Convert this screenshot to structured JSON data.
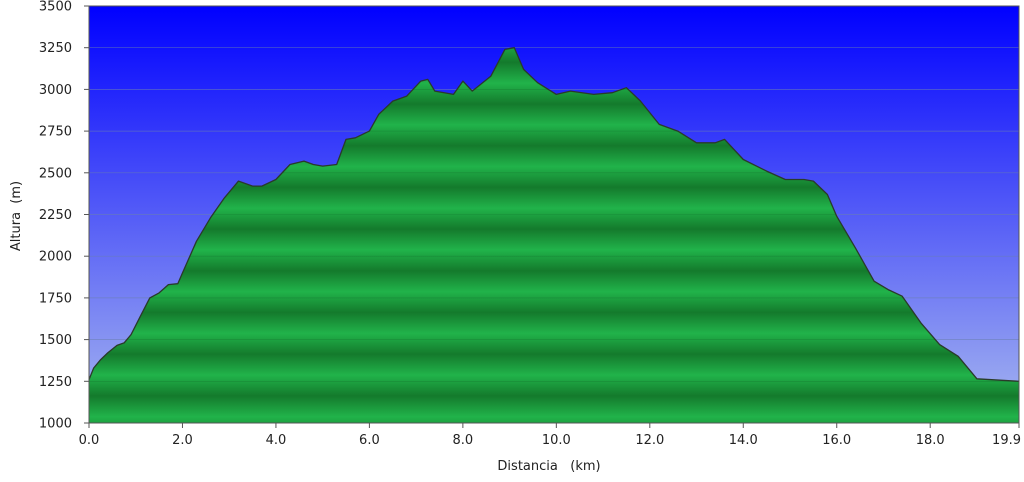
{
  "chart_data": {
    "type": "area",
    "xlabel": "Distancia   (km)",
    "ylabel": "Altura  (m)",
    "xlim": [
      0.0,
      19.9
    ],
    "ylim": [
      1000,
      3500
    ],
    "x_ticks": [
      "0.0",
      "2.0",
      "4.0",
      "6.0",
      "8.0",
      "10.0",
      "12.0",
      "14.0",
      "16.0",
      "18.0",
      "19.9"
    ],
    "x_tick_values": [
      0,
      2,
      4,
      6,
      8,
      10,
      12,
      14,
      16,
      18,
      19.9
    ],
    "y_ticks": [
      "1000",
      "1250",
      "1500",
      "1750",
      "2000",
      "2250",
      "2500",
      "2750",
      "3000",
      "3250",
      "3500"
    ],
    "y_tick_values": [
      1000,
      1250,
      1500,
      1750,
      2000,
      2250,
      2500,
      2750,
      3000,
      3250,
      3500
    ],
    "grid": "horizontal",
    "colors": {
      "sky_top": "#0000ff",
      "sky_bottom": "#a8b8ef",
      "terrain_light": "#21b34a",
      "terrain_dark": "#147a2c",
      "outline": "#2a3a2a"
    },
    "series": [
      {
        "x": [
          0.0,
          0.1,
          0.25,
          0.4,
          0.6,
          0.75,
          0.9,
          1.1,
          1.3,
          1.5,
          1.7,
          1.9,
          2.0,
          2.3,
          2.6,
          2.9,
          3.2,
          3.5,
          3.7,
          4.0,
          4.3,
          4.6,
          4.8,
          5.0,
          5.3,
          5.5,
          5.7,
          6.0,
          6.2,
          6.5,
          6.8,
          7.1,
          7.25,
          7.4,
          7.8,
          8.0,
          8.2,
          8.6,
          8.9,
          9.1,
          9.3,
          9.6,
          10.0,
          10.3,
          10.8,
          11.2,
          11.5,
          11.8,
          12.2,
          12.6,
          13.0,
          13.4,
          13.6,
          14.0,
          14.5,
          14.9,
          15.3,
          15.5,
          15.8,
          16.0,
          16.4,
          16.8,
          17.1,
          17.4,
          17.8,
          18.2,
          18.6,
          19.0,
          19.9
        ],
        "y": [
          1260,
          1330,
          1380,
          1420,
          1465,
          1480,
          1530,
          1640,
          1750,
          1780,
          1830,
          1835,
          1900,
          2090,
          2230,
          2350,
          2450,
          2420,
          2420,
          2460,
          2550,
          2570,
          2550,
          2540,
          2550,
          2700,
          2710,
          2750,
          2850,
          2930,
          2960,
          3050,
          3060,
          2990,
          2970,
          3050,
          2990,
          3080,
          3240,
          3250,
          3120,
          3040,
          2970,
          2990,
          2970,
          2980,
          3010,
          2930,
          2790,
          2750,
          2680,
          2680,
          2700,
          2580,
          2510,
          2460,
          2460,
          2450,
          2370,
          2240,
          2050,
          1850,
          1800,
          1760,
          1600,
          1470,
          1400,
          1265,
          1250
        ]
      }
    ]
  }
}
